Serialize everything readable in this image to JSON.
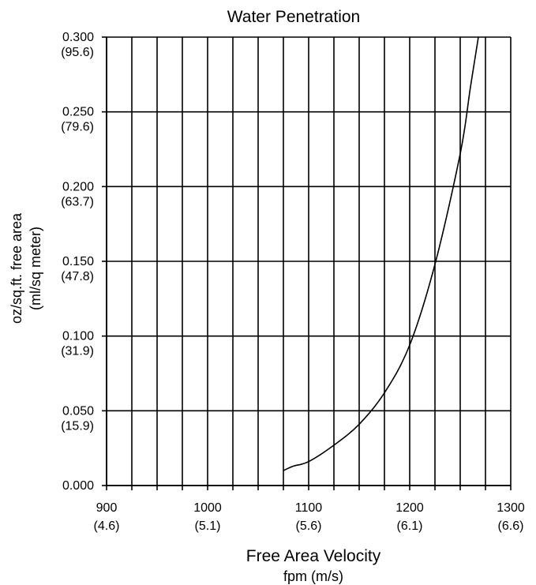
{
  "chart_data": {
    "type": "line",
    "title": "Water Penetration",
    "xlabel": "Free Area Velocity",
    "xlabel_sub": "fpm (m/s)",
    "ylabel": "oz/sq.ft. free area",
    "ylabel_sub": "(ml/sq meter)",
    "xlim": [
      900,
      1300
    ],
    "ylim": [
      0,
      0.3
    ],
    "x_ticks": [
      {
        "value": 900,
        "label": "900",
        "sub": "(4.6)"
      },
      {
        "value": 1000,
        "label": "1000",
        "sub": "(5.1)"
      },
      {
        "value": 1100,
        "label": "1100",
        "sub": "(5.6)"
      },
      {
        "value": 1200,
        "label": "1200",
        "sub": "(6.1)"
      },
      {
        "value": 1300,
        "label": "1300",
        "sub": "(6.6)"
      }
    ],
    "y_ticks": [
      {
        "value": 0.0,
        "label": "0.000",
        "sub": ""
      },
      {
        "value": 0.05,
        "label": "0.050",
        "sub": "(15.9)"
      },
      {
        "value": 0.1,
        "label": "0.100",
        "sub": "(31.9)"
      },
      {
        "value": 0.15,
        "label": "0.150",
        "sub": "(47.8)"
      },
      {
        "value": 0.2,
        "label": "0.200",
        "sub": "(63.7)"
      },
      {
        "value": 0.25,
        "label": "0.250",
        "sub": "(79.6)"
      },
      {
        "value": 0.3,
        "label": "0.300",
        "sub": "(95.6)"
      }
    ],
    "x_minor_step": 25,
    "grid": true,
    "series": [
      {
        "x": [
          1075,
          1085,
          1100,
          1125,
          1150,
          1175,
          1200,
          1225,
          1250,
          1260,
          1268
        ],
        "y": [
          0.01,
          0.013,
          0.016,
          0.027,
          0.041,
          0.062,
          0.094,
          0.148,
          0.222,
          0.266,
          0.3
        ]
      }
    ],
    "line_color": "#000000"
  }
}
